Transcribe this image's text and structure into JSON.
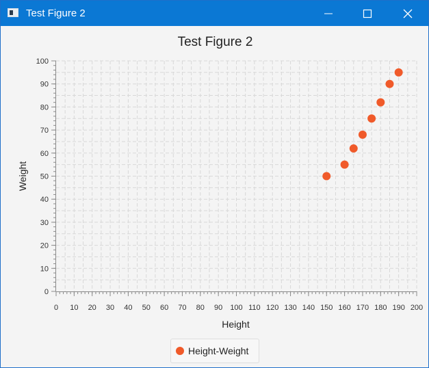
{
  "window": {
    "title": "Test Figure 2",
    "controls": [
      "minimize-icon",
      "maximize-icon",
      "close-icon"
    ]
  },
  "colors": {
    "titlebar": "#0b78d4",
    "series": "#f05a2a",
    "grid": "#d8d8d8",
    "axis": "#8a8a8a",
    "text": "#333333"
  },
  "chart_data": {
    "type": "scatter",
    "title": "Test Figure 2",
    "xlabel": "Height",
    "ylabel": "Weight",
    "xlim": [
      0,
      200
    ],
    "ylim": [
      0,
      100
    ],
    "xticks": [
      0,
      10,
      20,
      30,
      40,
      50,
      60,
      70,
      80,
      90,
      100,
      110,
      120,
      130,
      140,
      150,
      160,
      170,
      180,
      190,
      200
    ],
    "yticks": [
      0,
      10,
      20,
      30,
      40,
      50,
      60,
      70,
      80,
      90,
      100
    ],
    "grid": true,
    "legend_position": "bottom",
    "series": [
      {
        "name": "Height-Weight",
        "color": "#f05a2a",
        "points": [
          {
            "x": 150,
            "y": 50
          },
          {
            "x": 160,
            "y": 55
          },
          {
            "x": 165,
            "y": 62
          },
          {
            "x": 170,
            "y": 68
          },
          {
            "x": 175,
            "y": 75
          },
          {
            "x": 180,
            "y": 82
          },
          {
            "x": 185,
            "y": 90
          },
          {
            "x": 190,
            "y": 95
          }
        ]
      }
    ]
  }
}
